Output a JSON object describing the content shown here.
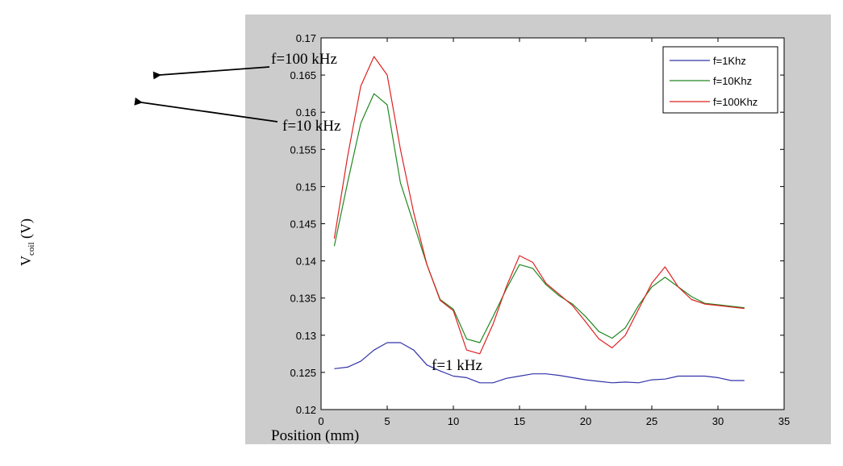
{
  "chart_data": {
    "type": "line",
    "title": "",
    "xlabel": "Position (mm)",
    "ylabel": {
      "main": "V",
      "subscript": "coil",
      "unit": " (V)"
    },
    "xlim": [
      0,
      35
    ],
    "ylim": [
      0.12,
      0.17
    ],
    "xticks": [
      0,
      5,
      10,
      15,
      20,
      25,
      30,
      35
    ],
    "yticks": [
      0.12,
      0.125,
      0.13,
      0.135,
      0.14,
      0.145,
      0.15,
      0.155,
      0.16,
      0.165,
      0.17
    ],
    "ytick_labels": [
      "0.12",
      "0.125",
      "0.13",
      "0.135",
      "0.14",
      "0.145",
      "0.15",
      "0.155",
      "0.16",
      "0.165",
      "0.17"
    ],
    "grid": false,
    "legend_position": "top-right",
    "x": [
      1,
      2,
      3,
      4,
      5,
      6,
      7,
      8,
      9,
      10,
      11,
      12,
      13,
      14,
      15,
      16,
      17,
      18,
      19,
      20,
      21,
      22,
      23,
      24,
      25,
      26,
      27,
      28,
      29,
      30,
      31,
      32
    ],
    "series": [
      {
        "name": "f=1Khz",
        "color": "#3333aa",
        "values": [
          0.1255,
          0.1257,
          0.1265,
          0.128,
          0.129,
          0.129,
          0.128,
          0.126,
          0.1252,
          0.1245,
          0.1243,
          0.1236,
          0.1236,
          0.1242,
          0.1245,
          0.1248,
          0.1248,
          0.1246,
          0.1243,
          0.124,
          0.1238,
          0.1236,
          0.1237,
          0.1236,
          0.124,
          0.1241,
          0.1245,
          0.1245,
          0.1245,
          0.1243,
          0.1239,
          0.1239
        ]
      },
      {
        "name": "f=10Khz",
        "color": "#228822",
        "values": [
          0.142,
          0.1505,
          0.1585,
          0.1625,
          0.161,
          0.1505,
          0.145,
          0.1395,
          0.1348,
          0.1335,
          0.1295,
          0.129,
          0.1325,
          0.1362,
          0.1395,
          0.139,
          0.1368,
          0.1353,
          0.1342,
          0.1325,
          0.1305,
          0.1296,
          0.131,
          0.134,
          0.1365,
          0.1378,
          0.1365,
          0.1352,
          0.1343,
          0.1341,
          0.1339,
          0.1337
        ]
      },
      {
        "name": "f=100Khz",
        "color": "#dd2222",
        "values": [
          0.143,
          0.154,
          0.1635,
          0.1675,
          0.165,
          0.155,
          0.1465,
          0.1395,
          0.1347,
          0.1333,
          0.128,
          0.1275,
          0.1315,
          0.1365,
          0.1407,
          0.1398,
          0.137,
          0.1355,
          0.134,
          0.1318,
          0.1295,
          0.1283,
          0.13,
          0.1335,
          0.137,
          0.1392,
          0.1365,
          0.1348,
          0.1342,
          0.134,
          0.1338,
          0.1336
        ]
      }
    ],
    "annotations": [
      {
        "text": "f=100 kHz",
        "arrow": true
      },
      {
        "text": "f=10 kHz",
        "arrow": true
      },
      {
        "text": "f=1 kHz",
        "arrow": false
      }
    ]
  },
  "colors": {
    "frame_bg": "#cccccc",
    "plot_bg": "#ffffff",
    "axis": "#000000"
  }
}
